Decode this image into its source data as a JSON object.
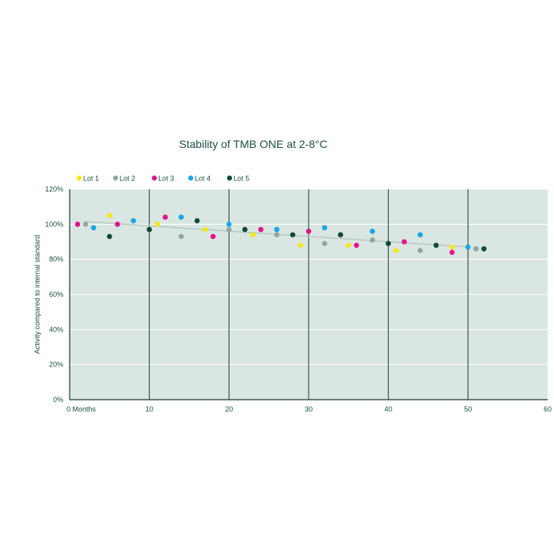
{
  "chart_data": {
    "type": "scatter",
    "title": "Stability of TMB ONE at 2-8°C",
    "ylabel": "Activity compared to internal standard",
    "xlabel": "",
    "x_first_tick_label": "0 Months",
    "xlim": [
      0,
      60
    ],
    "ylim": [
      0,
      120
    ],
    "x_ticks": [
      0,
      10,
      20,
      30,
      40,
      50,
      60
    ],
    "y_ticks": [
      0,
      20,
      40,
      60,
      80,
      100,
      120
    ],
    "y_tick_format": "percent",
    "legend_position": "top-left",
    "series": [
      {
        "name": "Lot 1",
        "color": "#f5e61a",
        "points": [
          [
            5,
            105
          ],
          [
            11,
            100
          ],
          [
            17,
            97
          ],
          [
            23,
            94
          ],
          [
            29,
            88
          ],
          [
            35,
            88
          ],
          [
            41,
            85
          ],
          [
            48,
            87
          ]
        ]
      },
      {
        "name": "Lot 2",
        "color": "#8fa89f",
        "points": [
          [
            2,
            100
          ],
          [
            8,
            102
          ],
          [
            14,
            93
          ],
          [
            20,
            97
          ],
          [
            26,
            94
          ],
          [
            32,
            89
          ],
          [
            38,
            91
          ],
          [
            44,
            85
          ],
          [
            51,
            86
          ]
        ]
      },
      {
        "name": "Lot 3",
        "color": "#e0168c",
        "points": [
          [
            1,
            100
          ],
          [
            6,
            100
          ],
          [
            12,
            104
          ],
          [
            18,
            93
          ],
          [
            24,
            97
          ],
          [
            30,
            96
          ],
          [
            36,
            88
          ],
          [
            42,
            90
          ],
          [
            48,
            84
          ]
        ]
      },
      {
        "name": "Lot 4",
        "color": "#1aa6e8",
        "points": [
          [
            3,
            98
          ],
          [
            8,
            102
          ],
          [
            14,
            104
          ],
          [
            20,
            100
          ],
          [
            26,
            97
          ],
          [
            32,
            98
          ],
          [
            38,
            96
          ],
          [
            44,
            94
          ],
          [
            50,
            87
          ]
        ]
      },
      {
        "name": "Lot 5",
        "color": "#0d4a3a",
        "points": [
          [
            5,
            93
          ],
          [
            10,
            97
          ],
          [
            16,
            102
          ],
          [
            22,
            97
          ],
          [
            28,
            94
          ],
          [
            34,
            94
          ],
          [
            40,
            89
          ],
          [
            46,
            88
          ],
          [
            52,
            86
          ]
        ]
      }
    ],
    "trend_line": {
      "color": "#b7c9c2",
      "from": [
        2,
        101.5
      ],
      "to": [
        50,
        87
      ]
    },
    "major_vlines": [
      10,
      20,
      30,
      40,
      50
    ],
    "plot_background": "#dae6e1",
    "grid_color": "#ffffff",
    "axis_color": "#1a3a32"
  }
}
